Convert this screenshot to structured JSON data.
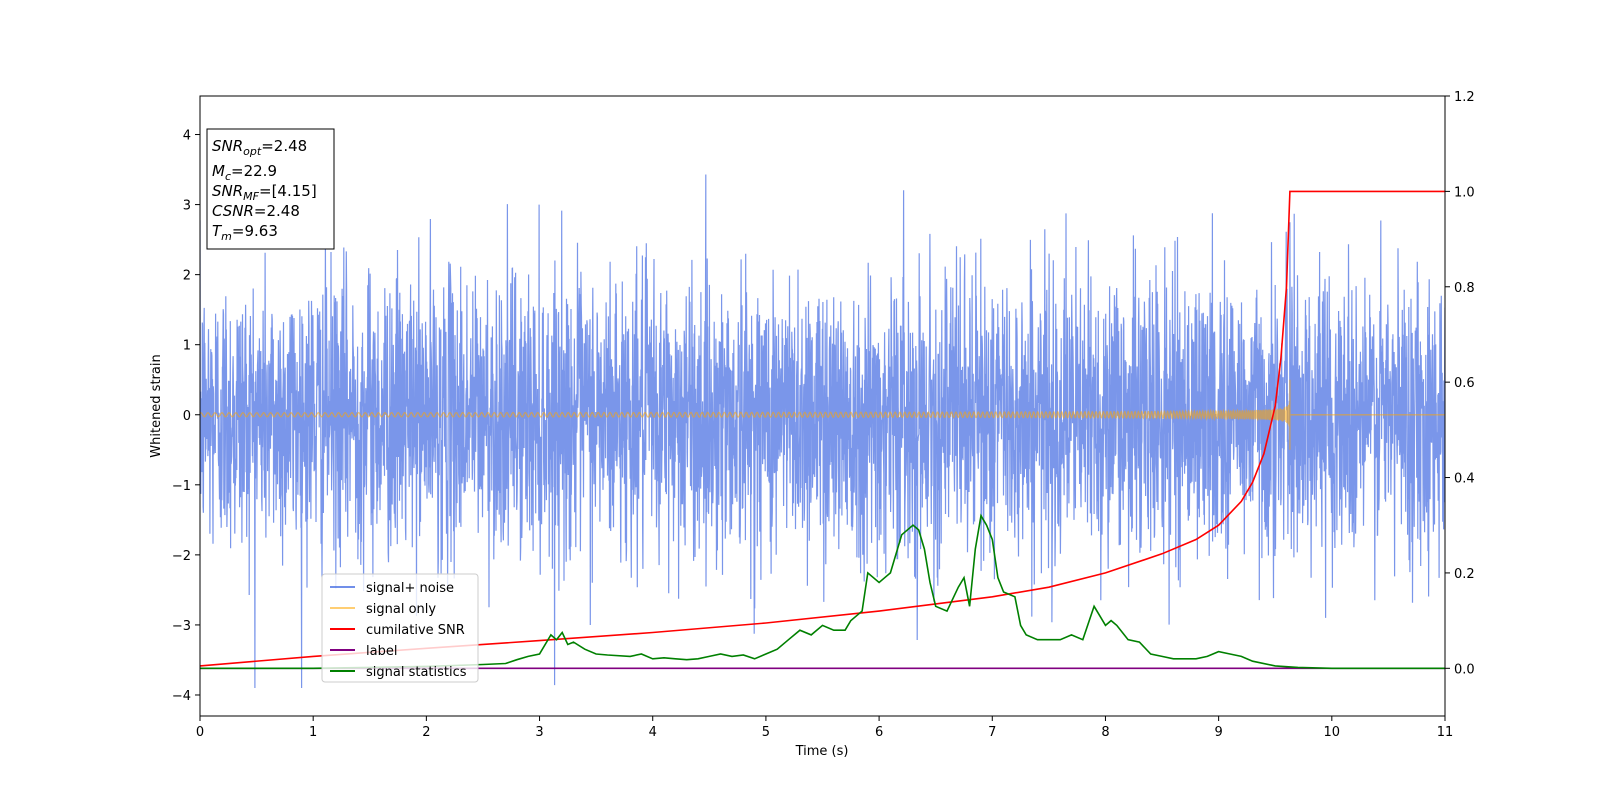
{
  "chart_data": {
    "type": "line",
    "xlabel": "Time (s)",
    "ylabel": "Whitened strain",
    "xlim": [
      0,
      11
    ],
    "ylim": [
      -4.3,
      4.55
    ],
    "y2lim": [
      -0.1,
      1.2
    ],
    "xticks": [
      "0",
      "1",
      "2",
      "3",
      "4",
      "5",
      "6",
      "7",
      "8",
      "9",
      "10",
      "11"
    ],
    "yticks": [
      "4",
      "3",
      "2",
      "1",
      "0",
      "−1",
      "−2",
      "−3",
      "−4"
    ],
    "y2ticks": [
      "1.2",
      "1.0",
      "0.8",
      "0.6",
      "0.4",
      "0.2",
      "0.0"
    ],
    "grid": false,
    "legend_position": "lower-left",
    "annotation": {
      "lines": [
        {
          "prefix": "SNR",
          "sub": "opt",
          "value": "=2.48"
        },
        {
          "prefix": "M",
          "sub": "c",
          "value": "=22.9"
        },
        {
          "prefix": "SNR",
          "sub": "MF",
          "value": "=[4.15]"
        },
        {
          "prefix": "CSNR",
          "sub": "",
          "value": "=2.48"
        },
        {
          "prefix": "T",
          "sub": "m",
          "value": "=9.63"
        }
      ]
    },
    "series": [
      {
        "name": "signal+ noise",
        "color": "#4169e1",
        "axis": "left",
        "style": "noise",
        "amplitude": 1.0,
        "x_range": [
          0,
          11
        ]
      },
      {
        "name": "signal only",
        "color": "#ffa500",
        "axis": "left",
        "style": "chirp",
        "merge_time": 9.63,
        "peak_amplitude": 0.5,
        "x_range": [
          0,
          9.63
        ]
      },
      {
        "name": "cumilative SNR",
        "color": "#ff0000",
        "axis": "right",
        "x": [
          0,
          1,
          2,
          3,
          4,
          5,
          6,
          6.5,
          7,
          7.5,
          8,
          8.5,
          8.8,
          9.0,
          9.2,
          9.3,
          9.4,
          9.5,
          9.55,
          9.6,
          9.63,
          10,
          11
        ],
        "y": [
          0.005,
          0.025,
          0.042,
          0.058,
          0.075,
          0.095,
          0.12,
          0.135,
          0.15,
          0.17,
          0.2,
          0.24,
          0.27,
          0.3,
          0.35,
          0.39,
          0.45,
          0.55,
          0.65,
          0.8,
          1.0,
          1.0,
          1.0
        ]
      },
      {
        "name": "label",
        "color": "#800080",
        "axis": "right",
        "x": [
          0,
          11
        ],
        "y": [
          0,
          0
        ]
      },
      {
        "name": "signal statistics",
        "color": "#008000",
        "axis": "right",
        "x": [
          0,
          0.5,
          1,
          1.5,
          2,
          2.5,
          2.7,
          2.8,
          2.9,
          3.0,
          3.1,
          3.15,
          3.2,
          3.25,
          3.3,
          3.4,
          3.5,
          3.6,
          3.8,
          3.9,
          4.0,
          4.1,
          4.2,
          4.3,
          4.4,
          4.5,
          4.6,
          4.7,
          4.8,
          4.9,
          5.0,
          5.1,
          5.2,
          5.3,
          5.4,
          5.5,
          5.6,
          5.7,
          5.75,
          5.8,
          5.85,
          5.9,
          6.0,
          6.05,
          6.1,
          6.2,
          6.3,
          6.35,
          6.4,
          6.45,
          6.5,
          6.6,
          6.7,
          6.75,
          6.8,
          6.85,
          6.9,
          6.95,
          7.0,
          7.05,
          7.1,
          7.2,
          7.25,
          7.3,
          7.4,
          7.5,
          7.6,
          7.7,
          7.8,
          7.9,
          7.95,
          8.0,
          8.05,
          8.1,
          8.2,
          8.3,
          8.4,
          8.5,
          8.6,
          8.8,
          8.9,
          9.0,
          9.1,
          9.2,
          9.3,
          9.5,
          9.7,
          10,
          11
        ],
        "y": [
          0.0,
          0.0,
          0.0,
          0.002,
          0.004,
          0.008,
          0.01,
          0.018,
          0.025,
          0.03,
          0.07,
          0.06,
          0.075,
          0.05,
          0.055,
          0.04,
          0.03,
          0.028,
          0.025,
          0.03,
          0.02,
          0.022,
          0.02,
          0.018,
          0.02,
          0.025,
          0.03,
          0.025,
          0.028,
          0.02,
          0.03,
          0.04,
          0.06,
          0.08,
          0.07,
          0.09,
          0.08,
          0.08,
          0.1,
          0.11,
          0.12,
          0.2,
          0.18,
          0.19,
          0.2,
          0.28,
          0.3,
          0.29,
          0.25,
          0.18,
          0.13,
          0.12,
          0.17,
          0.19,
          0.13,
          0.25,
          0.32,
          0.3,
          0.27,
          0.19,
          0.16,
          0.15,
          0.09,
          0.07,
          0.06,
          0.06,
          0.06,
          0.07,
          0.06,
          0.13,
          0.11,
          0.09,
          0.1,
          0.09,
          0.06,
          0.055,
          0.03,
          0.025,
          0.02,
          0.02,
          0.025,
          0.035,
          0.03,
          0.025,
          0.015,
          0.005,
          0.002,
          0.0,
          0.0
        ]
      }
    ]
  }
}
